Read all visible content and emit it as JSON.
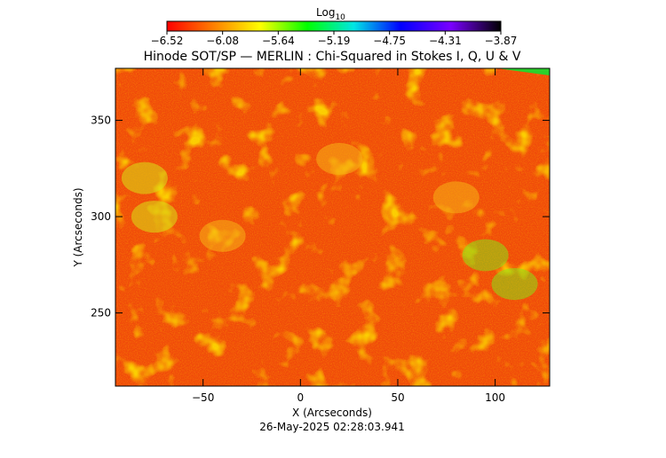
{
  "chart_data": {
    "type": "heatmap",
    "title": "Hinode SOT/SP — MERLIN : Chi-Squared in Stokes I, Q, U & V",
    "xlabel": "X (Arcseconds)",
    "ylabel": "Y (Arcseconds)",
    "xlim": [
      -95,
      128
    ],
    "ylim": [
      212,
      377
    ],
    "x_ticks": [
      "−50",
      "0",
      "50",
      "100"
    ],
    "x_tick_values": [
      -50,
      0,
      50,
      100
    ],
    "y_ticks": [
      "250",
      "300",
      "350"
    ],
    "y_tick_values": [
      250,
      300,
      350
    ],
    "colorbar": {
      "label": "Log",
      "label_sub": "10",
      "tick_labels": [
        "−6.52",
        "−6.08",
        "−5.64",
        "−5.19",
        "−4.75",
        "−4.31",
        "−3.87"
      ],
      "range": [
        -6.52,
        -3.87
      ],
      "colormap": [
        "#ff0000",
        "#ff8c00",
        "#ffff00",
        "#00ff00",
        "#00e5e5",
        "#0000ff",
        "#8000ff",
        "#000000"
      ]
    },
    "field_summary": "mostly low chi-squared (red/orange) with yellow-green patches in network regions",
    "regions": [
      {
        "x": -80,
        "y": 320,
        "level": -5.9
      },
      {
        "x": -75,
        "y": 300,
        "level": -5.95
      },
      {
        "x": -40,
        "y": 290,
        "level": -6.0
      },
      {
        "x": 95,
        "y": 280,
        "level": -5.7
      },
      {
        "x": 110,
        "y": 265,
        "level": -5.75
      },
      {
        "x": 80,
        "y": 310,
        "level": -6.0
      },
      {
        "x": 20,
        "y": 330,
        "level": -6.1
      }
    ]
  },
  "timestamp": "26-May-2025 02:28:03.941"
}
